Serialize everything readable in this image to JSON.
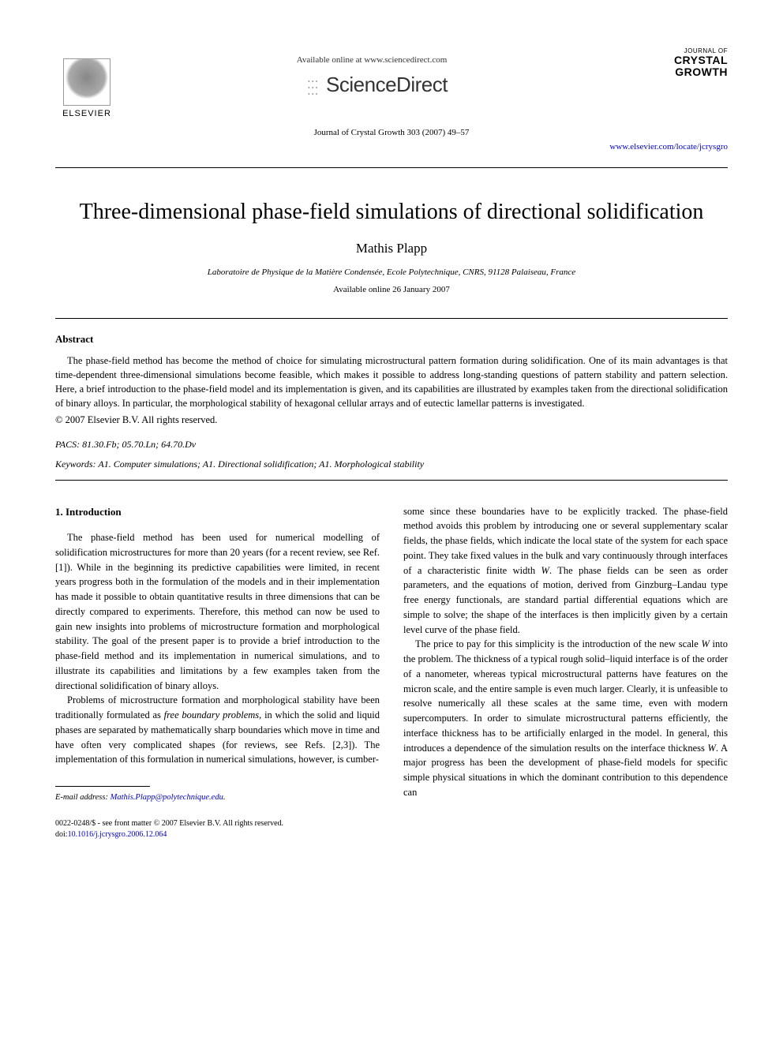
{
  "header": {
    "available_online": "Available online at www.sciencedirect.com",
    "sciencedirect": "ScienceDirect",
    "elsevier": "ELSEVIER",
    "journal_small": "JOURNAL OF",
    "journal_name_1": "CRYSTAL",
    "journal_name_2": "GROWTH",
    "citation": "Journal of Crystal Growth 303 (2007) 49–57",
    "journal_url": "www.elsevier.com/locate/jcrysgro"
  },
  "paper": {
    "title": "Three-dimensional phase-field simulations of directional solidification",
    "author": "Mathis Plapp",
    "affiliation": "Laboratoire de Physique de la Matière Condensée, Ecole Polytechnique, CNRS, 91128 Palaiseau, France",
    "available_date": "Available online 26 January 2007"
  },
  "abstract": {
    "heading": "Abstract",
    "text": "The phase-field method has become the method of choice for simulating microstructural pattern formation during solidification. One of its main advantages is that time-dependent three-dimensional simulations become feasible, which makes it possible to address long-standing questions of pattern stability and pattern selection. Here, a brief introduction to the phase-field model and its implementation is given, and its capabilities are illustrated by examples taken from the directional solidification of binary alloys. In particular, the morphological stability of hexagonal cellular arrays and of eutectic lamellar patterns is investigated.",
    "copyright": "© 2007 Elsevier B.V. All rights reserved."
  },
  "pacs": {
    "label": "PACS:",
    "codes": "81.30.Fb; 05.70.Ln; 64.70.Dv"
  },
  "keywords": {
    "label": "Keywords:",
    "text": "A1. Computer simulations; A1. Directional solidification; A1. Morphological stability"
  },
  "section1": {
    "heading": "1. Introduction",
    "col1_p1": "The phase-field method has been used for numerical modelling of solidification microstructures for more than 20 years (for a recent review, see Ref. [1]). While in the beginning its predictive capabilities were limited, in recent years progress both in the formulation of the models and in their implementation has made it possible to obtain quantitative results in three dimensions that can be directly compared to experiments. Therefore, this method can now be used to gain new insights into problems of microstructure formation and morphological stability. The goal of the present paper is to provide a brief introduction to the phase-field method and its implementation in numerical simulations, and to illustrate its capabilities and limitations by a few examples taken from the directional solidification of binary alloys.",
    "col1_p2a": "Problems of microstructure formation and morphological stability have been traditionally formulated as ",
    "col1_p2_italic": "free boundary problems",
    "col1_p2b": ", in which the solid and liquid phases are separated by mathematically sharp boundaries which move in time and have often very complicated shapes (for reviews, see Refs. [2,3]). The implementation of this formulation in numerical simulations, however, is cumber-",
    "col2_p1a": "some since these boundaries have to be explicitly tracked. The phase-field method avoids this problem by introducing one or several supplementary scalar fields, the phase fields, which indicate the local state of the system for each space point. They take fixed values in the bulk and vary continuously through interfaces of a characteristic finite width ",
    "col2_p1_W1": "W",
    "col2_p1b": ". The phase fields can be seen as order parameters, and the equations of motion, derived from Ginzburg–Landau type free energy functionals, are standard partial differential equations which are simple to solve; the shape of the interfaces is then implicitly given by a certain level curve of the phase field.",
    "col2_p2a": "The price to pay for this simplicity is the introduction of the new scale ",
    "col2_p2_W1": "W",
    "col2_p2b": " into the problem. The thickness of a typical rough solid–liquid interface is of the order of a nanometer, whereas typical microstructural patterns have features on the micron scale, and the entire sample is even much larger. Clearly, it is unfeasible to resolve numerically all these scales at the same time, even with modern supercomputers. In order to simulate microstructural patterns efficiently, the interface thickness has to be artificially enlarged in the model. In general, this introduces a dependence of the simulation results on the interface thickness ",
    "col2_p2_W2": "W",
    "col2_p2c": ". A major progress has been the development of phase-field models for specific simple physical situations in which the dominant contribution to this dependence can"
  },
  "footnote": {
    "label": "E-mail address:",
    "email": "Mathis.Plapp@polytechnique.edu",
    "dot": "."
  },
  "bottom": {
    "line1": "0022-0248/$ - see front matter © 2007 Elsevier B.V. All rights reserved.",
    "doi_label": "doi:",
    "doi": "10.1016/j.jcrysgro.2006.12.064"
  }
}
